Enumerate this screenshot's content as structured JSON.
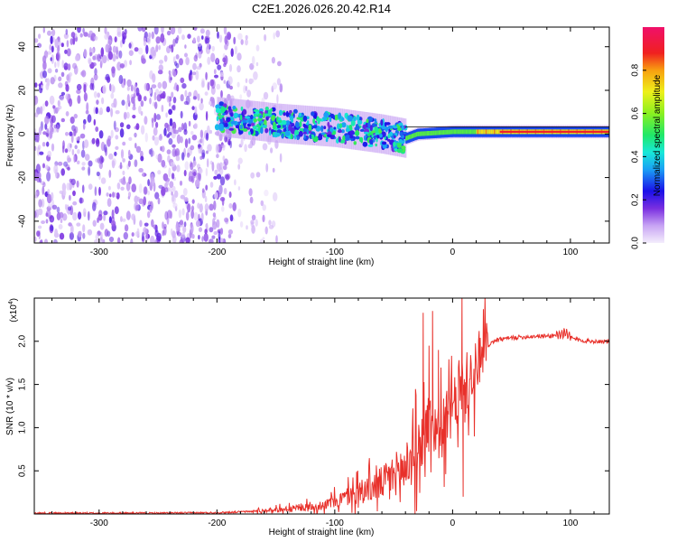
{
  "title": "C2E1.2026.026.20.42.R14",
  "colors": {
    "snr_line": "#e8302a",
    "axis": "#000000",
    "zero_line": "#000000"
  },
  "chart_data": [
    {
      "type": "heatmap",
      "title": "C2E1.2026.026.20.42.R14",
      "xlabel": "Height of straight line (km)",
      "ylabel": "Frequency (Hz)",
      "xlim": [
        -355,
        133
      ],
      "ylim": [
        -50,
        49
      ],
      "x_ticks": [
        -300,
        -200,
        -100,
        0,
        100
      ],
      "x_tick_labels": [
        "-300",
        "-200",
        "-100",
        "0",
        "100"
      ],
      "y_ticks": [
        -40,
        -20,
        0,
        20,
        40
      ],
      "y_tick_labels": [
        "-40",
        "-20",
        "0",
        "20",
        "40"
      ],
      "colorbar": {
        "label": "Normalized spectral amplitude",
        "range": [
          0,
          1
        ],
        "ticks": [
          0.0,
          0.2,
          0.4,
          0.6,
          0.8
        ],
        "tick_labels": [
          "0.0",
          "0.2",
          "0.4",
          "0.6",
          "0.8"
        ]
      },
      "regions": [
        {
          "x_range": [
            -355,
            -185
          ],
          "freq_range": [
            -50,
            49
          ],
          "amplitude": 0.15,
          "description": "broadband noise"
        },
        {
          "x_range": [
            -185,
            -145
          ],
          "freq_range": [
            -50,
            49
          ],
          "amplitude": 0.08,
          "description": "sparse noise"
        },
        {
          "x_range": [
            -200,
            -40
          ],
          "freq_center": 3,
          "freq_halfwidth": 7,
          "amplitude": 0.35
        },
        {
          "x_range": [
            -40,
            133
          ],
          "freq_center": 1,
          "freq_halfwidth": 1.5,
          "amplitude": 0.95
        }
      ],
      "ridge": {
        "x": [
          -200,
          -150,
          -100,
          -60,
          -40,
          -30,
          0,
          50,
          100,
          133
        ],
        "freq": [
          8,
          5,
          3,
          0,
          -2,
          0,
          1,
          1,
          1,
          1
        ]
      }
    },
    {
      "type": "line",
      "xlabel": "Height of straight line (km)",
      "ylabel": "SNR (10 * v/v)",
      "y_multiplier": "(x10",
      "y_multiplier_exp": "4",
      "y_multiplier_close": ")",
      "xlim": [
        -355,
        133
      ],
      "ylim": [
        0,
        2.5
      ],
      "x_ticks": [
        -300,
        -200,
        -100,
        0,
        100
      ],
      "x_tick_labels": [
        "-300",
        "-200",
        "-100",
        "0",
        "100"
      ],
      "y_ticks": [
        0.5,
        1.0,
        1.5,
        2.0
      ],
      "y_tick_labels": [
        "0.5",
        "1.0",
        "1.5",
        "2.0"
      ],
      "series": [
        {
          "name": "SNR",
          "x": [
            -355,
            -250,
            -200,
            -170,
            -150,
            -130,
            -110,
            -100,
            -90,
            -80,
            -70,
            -60,
            -50,
            -40,
            -30,
            -25,
            -20,
            -15,
            -10,
            -5,
            0,
            5,
            8,
            10,
            12,
            15,
            20,
            25,
            30,
            35,
            40,
            50,
            60,
            70,
            80,
            90,
            95,
            100,
            105,
            110,
            120,
            133
          ],
          "values": [
            0.01,
            0.01,
            0.015,
            0.03,
            0.05,
            0.07,
            0.1,
            0.14,
            0.2,
            0.25,
            0.3,
            0.36,
            0.45,
            0.55,
            0.72,
            0.9,
            1.1,
            1.0,
            0.95,
            1.1,
            1.2,
            1.35,
            1.5,
            1.3,
            1.55,
            1.45,
            1.62,
            1.78,
            1.95,
            2.0,
            2.02,
            2.04,
            2.05,
            2.06,
            2.06,
            2.07,
            2.1,
            2.05,
            2.02,
            2.01,
            2.0,
            2.0
          ]
        }
      ],
      "spikes": [
        {
          "x": -25,
          "value": 2.33
        },
        {
          "x": -20,
          "value": 1.95
        },
        {
          "x": -17,
          "value": 2.35
        },
        {
          "x": -12,
          "value": 1.9
        },
        {
          "x": 8,
          "value": 2.55
        },
        {
          "x": 9,
          "value": 0.2
        },
        {
          "x": 5,
          "value": 1.7
        }
      ]
    }
  ]
}
